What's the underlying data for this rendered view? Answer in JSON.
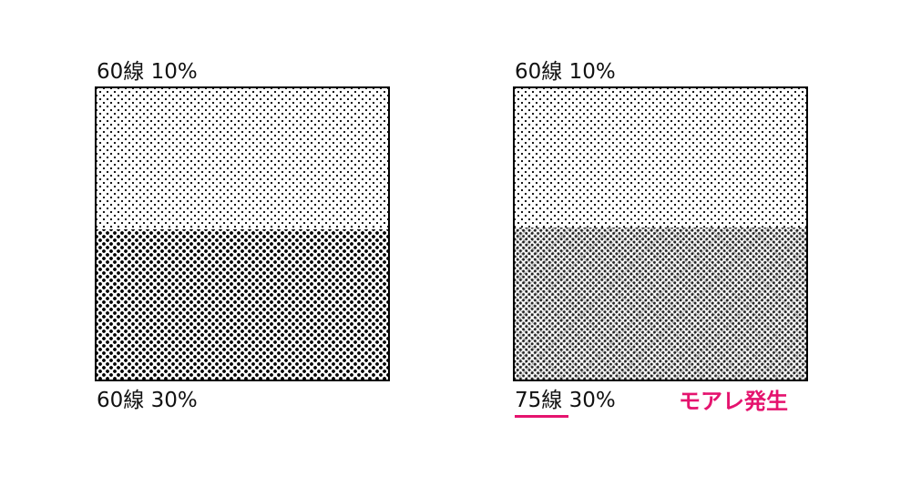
{
  "left": {
    "top_label": "60線 10%",
    "bottom_label": "60線 30%"
  },
  "right": {
    "top_label": "60線 10%",
    "bottom_label_underlined": "75線",
    "bottom_label_rest": " 30%",
    "moire_label": "モアレ発生"
  },
  "colors": {
    "accent": "#e5136e",
    "border": "#000000"
  }
}
